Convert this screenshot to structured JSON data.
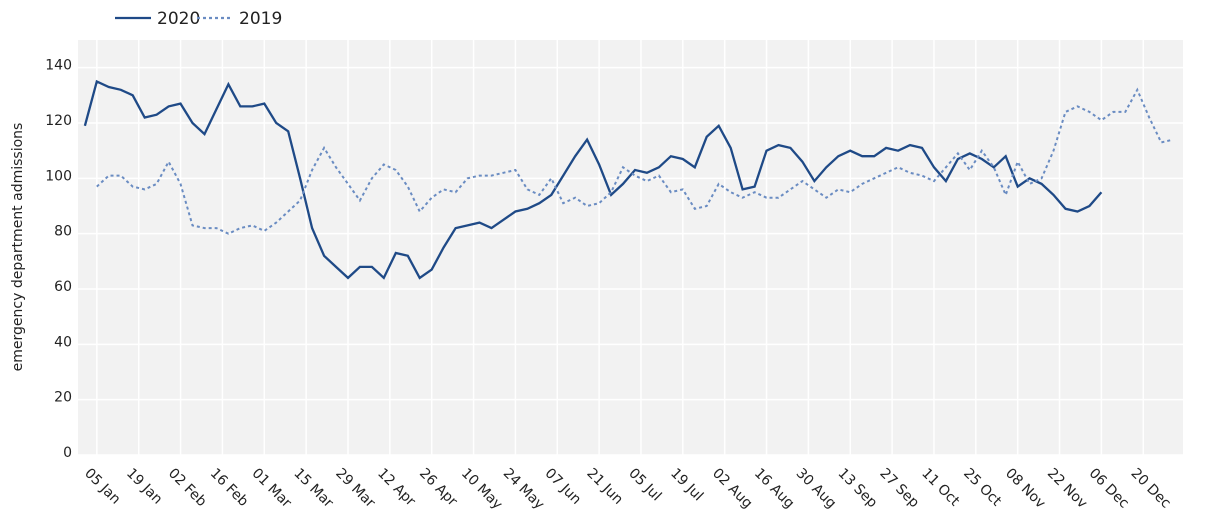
{
  "chart_data": {
    "type": "line",
    "y_label": "emergency department admissions",
    "x": [
      1,
      5,
      9,
      13,
      17,
      21,
      25,
      29,
      33,
      37,
      41,
      45,
      49,
      53,
      57,
      61,
      65,
      69,
      73,
      77,
      81,
      85,
      89,
      93,
      97,
      101,
      105,
      109,
      113,
      117,
      121,
      125,
      129,
      133,
      137,
      141,
      145,
      149,
      153,
      157,
      161,
      165,
      169,
      173,
      177,
      181,
      185,
      189,
      193,
      197,
      201,
      205,
      209,
      213,
      217,
      221,
      225,
      229,
      233,
      237,
      241,
      245,
      249,
      253,
      257,
      261,
      265,
      269,
      273,
      277,
      281,
      285,
      289,
      293,
      297,
      301,
      305,
      309,
      313,
      317,
      321,
      325,
      329,
      333,
      337,
      341,
      345,
      349,
      353,
      357,
      361,
      365
    ],
    "series": [
      {
        "name": "2020",
        "color": "#1f4a87",
        "dash": "solid",
        "values": [
          119,
          135,
          133,
          132,
          130,
          122,
          123,
          126,
          127,
          120,
          116,
          125,
          134,
          126,
          126,
          127,
          120,
          117,
          100,
          82,
          72,
          68,
          64,
          68,
          68,
          64,
          73,
          72,
          64,
          67,
          75,
          82,
          83,
          84,
          82,
          85,
          88,
          89,
          91,
          94,
          101,
          108,
          114,
          105,
          94,
          98,
          103,
          102,
          104,
          108,
          107,
          104,
          115,
          119,
          111,
          96,
          97,
          110,
          112,
          111,
          106,
          99,
          104,
          108,
          110,
          108,
          108,
          111,
          110,
          112,
          111,
          104,
          99,
          107,
          109,
          107,
          104,
          108,
          97,
          100,
          98,
          94,
          89,
          88,
          90,
          95,
          null,
          null,
          null,
          null,
          null,
          null
        ]
      },
      {
        "name": "2019",
        "color": "#6a8cc2",
        "dash": "dotted",
        "values": [
          null,
          97,
          101,
          101,
          97,
          96,
          98,
          106,
          98,
          83,
          82,
          82,
          80,
          82,
          83,
          81,
          84,
          88,
          92,
          103,
          111,
          104,
          98,
          92,
          100,
          105,
          103,
          97,
          88,
          93,
          96,
          95,
          100,
          101,
          101,
          102,
          103,
          96,
          94,
          100,
          91,
          93,
          90,
          91,
          95,
          104,
          101,
          99,
          101,
          95,
          96,
          89,
          90,
          98,
          95,
          93,
          95,
          93,
          93,
          96,
          99,
          96,
          93,
          96,
          95,
          98,
          100,
          102,
          104,
          102,
          101,
          99,
          104,
          109,
          103,
          110,
          104,
          94,
          106,
          98,
          100,
          110,
          124,
          126,
          124,
          121,
          124,
          124,
          132,
          122,
          113,
          114
        ]
      }
    ],
    "xlim": [
      -1.3,
      368.3
    ],
    "xticks": [
      {
        "value": 5,
        "label": "05 Jan"
      },
      {
        "value": 19,
        "label": "19 Jan"
      },
      {
        "value": 33,
        "label": "02 Feb"
      },
      {
        "value": 47,
        "label": "16 Feb"
      },
      {
        "value": 61,
        "label": "01 Mar"
      },
      {
        "value": 75,
        "label": "15 Mar"
      },
      {
        "value": 89,
        "label": "29 Mar"
      },
      {
        "value": 103,
        "label": "12 Apr"
      },
      {
        "value": 117,
        "label": "26 Apr"
      },
      {
        "value": 131,
        "label": "10 May"
      },
      {
        "value": 145,
        "label": "24 May"
      },
      {
        "value": 159,
        "label": "07 Jun"
      },
      {
        "value": 173,
        "label": "21 Jun"
      },
      {
        "value": 187,
        "label": "05 Jul"
      },
      {
        "value": 201,
        "label": "19 Jul"
      },
      {
        "value": 215,
        "label": "02 Aug"
      },
      {
        "value": 229,
        "label": "16 Aug"
      },
      {
        "value": 243,
        "label": "30 Aug"
      },
      {
        "value": 257,
        "label": "13 Sep"
      },
      {
        "value": 271,
        "label": "27 Sep"
      },
      {
        "value": 285,
        "label": "11 Oct"
      },
      {
        "value": 299,
        "label": "25 Oct"
      },
      {
        "value": 313,
        "label": "08 Nov"
      },
      {
        "value": 327,
        "label": "22 Nov"
      },
      {
        "value": 341,
        "label": "06 Dec"
      },
      {
        "value": 355,
        "label": "20 Dec"
      }
    ],
    "ylim": [
      0,
      150
    ],
    "yticks": [
      0,
      20,
      40,
      60,
      80,
      100,
      120,
      140
    ],
    "grid": true
  }
}
